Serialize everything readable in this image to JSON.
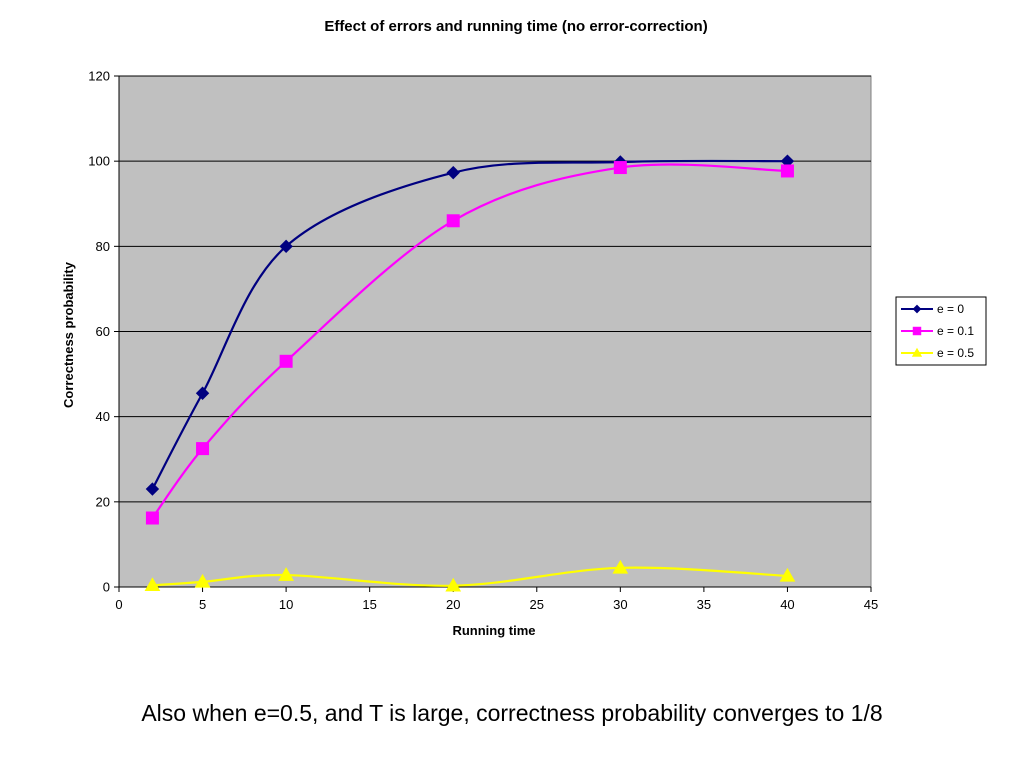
{
  "chart_data": {
    "type": "line",
    "title": "Effect of errors and running time (no error-correction)",
    "xlabel": "Running time",
    "ylabel": "Correctness probability",
    "xlim": [
      0,
      45
    ],
    "ylim": [
      0,
      120
    ],
    "xticks": [
      0,
      5,
      10,
      15,
      20,
      25,
      30,
      35,
      40,
      45
    ],
    "yticks": [
      0,
      20,
      40,
      60,
      80,
      100,
      120
    ],
    "grid": "horizontal",
    "plot_background": "#c0c0c0",
    "legend_position": "right",
    "series": [
      {
        "name": "e = 0",
        "color": "#000080",
        "marker": "diamond",
        "x": [
          2,
          5,
          10,
          20,
          30,
          40
        ],
        "y": [
          23,
          45.5,
          80,
          97.3,
          99.8,
          100
        ]
      },
      {
        "name": "e = 0.1",
        "color": "#ff00ff",
        "marker": "square",
        "x": [
          2,
          5,
          10,
          20,
          30,
          40
        ],
        "y": [
          16.2,
          32.5,
          53,
          86,
          98.5,
          97.7
        ]
      },
      {
        "name": "e = 0.5",
        "color": "#ffff00",
        "marker": "triangle",
        "x": [
          2,
          5,
          10,
          20,
          30,
          40
        ],
        "y": [
          0.4,
          1.2,
          2.8,
          0.3,
          4.5,
          2.6
        ]
      }
    ]
  },
  "caption": "Also when e=0.5, and T is large, correctness probability converges to 1/8"
}
